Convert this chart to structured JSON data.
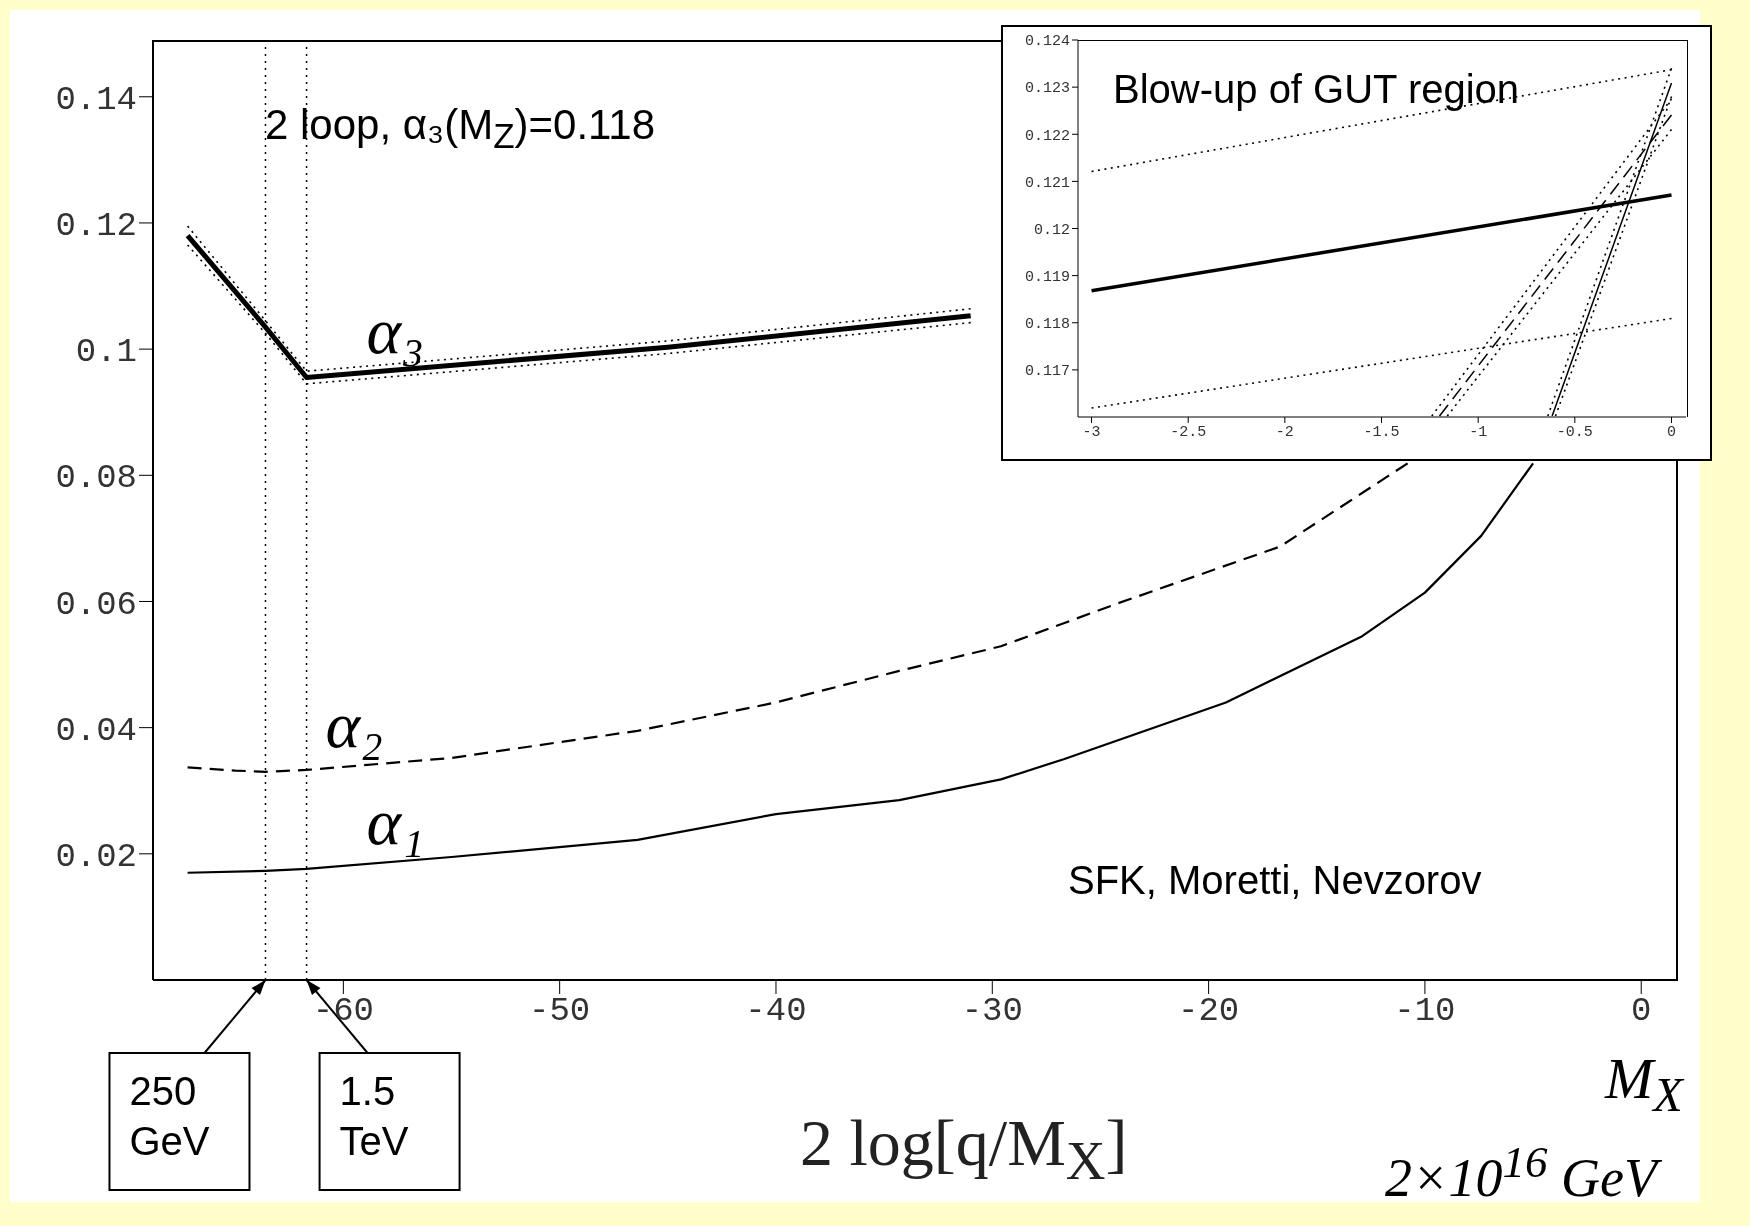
{
  "chart_data": [
    {
      "type": "line",
      "xlabel": "2 log[q/M$_{X}$]",
      "xlim": [
        -68.8,
        1.7
      ],
      "ylim": [
        0,
        0.149
      ],
      "xticks": [
        -60,
        -50,
        -40,
        -30,
        -20,
        -10,
        0
      ],
      "yticks": [
        0.02,
        0.04,
        0.06,
        0.08,
        0.1,
        0.12,
        0.14
      ],
      "grid": false,
      "legend": false,
      "marker": "none",
      "annotations": [
        "2 loop, α₃(M$_{Z}$)=0.118",
        "SFK, Moretti, Nevzorov",
        "M$_{X}$",
        "2×10$^{16}$ GeV",
        {
          "text": "250 GeV",
          "x": -63.6,
          "y": 0
        },
        {
          "text": "1.5 TeV",
          "x": -61.7,
          "y": 0
        }
      ],
      "ref_lines": [
        {
          "axis": "x",
          "value": -63.6,
          "color": "#000000",
          "line_style": "dotted"
        },
        {
          "axis": "x",
          "value": -61.7,
          "color": "#000000",
          "line_style": "dotted"
        }
      ],
      "series": [
        {
          "name": "α₃",
          "color": "#000000",
          "line_style": "solid",
          "x": [
            -67.2,
            -63.6,
            -61.7,
            -45,
            -31
          ],
          "values": [
            0.118,
            0.1035,
            0.0955,
            0.1003,
            0.1053
          ]
        },
        {
          "color": "#000000",
          "line_style": "dotted",
          "x": [
            -67.2,
            -63.6,
            -61.7,
            -45,
            -31
          ],
          "values": [
            0.1195,
            0.1045,
            0.0965,
            0.1013,
            0.1064
          ]
        },
        {
          "color": "#000000",
          "line_style": "dotted",
          "x": [
            -67.2,
            -63.6,
            -61.7,
            -45,
            -31
          ],
          "values": [
            0.1165,
            0.1025,
            0.0945,
            0.0993,
            0.1042
          ]
        },
        {
          "name": "α₂",
          "color": "#000000",
          "line_style": "dashed",
          "x": [
            -67.2,
            -65,
            -63.6,
            -61.7,
            -55,
            -46.4,
            -40,
            -34.3,
            -29.6,
            -24.2,
            -16.7,
            -10.8
          ],
          "values": [
            0.0337,
            0.0332,
            0.033,
            0.0333,
            0.0352,
            0.0395,
            0.044,
            0.049,
            0.0529,
            0.0597,
            0.0687,
            0.0819
          ]
        },
        {
          "name": "α₁",
          "color": "#000000",
          "line_style": "solid",
          "x": [
            -67.2,
            -63.6,
            -61.7,
            -55,
            -46.4,
            -40,
            -34.3,
            -29.6,
            -26.7,
            -19.2,
            -12.9,
            -10,
            -7.4,
            -5
          ],
          "values": [
            0.017,
            0.0173,
            0.0176,
            0.0195,
            0.0222,
            0.0263,
            0.0285,
            0.0318,
            0.035,
            0.044,
            0.0545,
            0.0614,
            0.0704,
            0.0819
          ]
        }
      ]
    },
    {
      "type": "line",
      "title": "Blow-up of GUT region",
      "xlim": [
        -3.07,
        0.075
      ],
      "ylim": [
        0.116,
        0.124
      ],
      "xticks": [
        -3,
        -2.5,
        -2,
        -1.5,
        -1,
        -0.5,
        0
      ],
      "yticks": [
        0.117,
        0.118,
        0.119,
        0.12,
        0.121,
        0.122,
        0.123,
        0.124
      ],
      "grid": false,
      "legend": false,
      "marker": "none",
      "series": [
        {
          "color": "#000000",
          "line_style": "solid",
          "x": [
            -3,
            0
          ],
          "values": [
            0.11868,
            0.12071
          ]
        },
        {
          "color": "#000000",
          "line_style": "dotted",
          "x": [
            -3,
            0
          ],
          "values": [
            0.12121,
            0.12337
          ]
        },
        {
          "color": "#000000",
          "line_style": "dotted",
          "x": [
            -3,
            0
          ],
          "values": [
            0.11619,
            0.11809
          ]
        },
        {
          "color": "#000000",
          "line_style": "dashed",
          "x": [
            -1.2,
            0
          ],
          "values": [
            0.11602,
            0.12241
          ]
        },
        {
          "color": "#000000",
          "line_style": "dotted",
          "x": [
            -1.24,
            0
          ],
          "values": [
            0.11602,
            0.12275
          ]
        },
        {
          "color": "#000000",
          "line_style": "dotted",
          "x": [
            -1.16,
            0
          ],
          "values": [
            0.11602,
            0.1221
          ]
        },
        {
          "color": "#000000",
          "line_style": "solid",
          "x": [
            -0.6175,
            0
          ],
          "values": [
            0.11602,
            0.12309
          ]
        },
        {
          "color": "#000000",
          "line_style": "dotted",
          "x": [
            -0.64,
            0
          ],
          "values": [
            0.11602,
            0.1234
          ]
        },
        {
          "color": "#000000",
          "line_style": "dotted",
          "x": [
            -0.6,
            0
          ],
          "values": [
            0.11602,
            0.1228
          ]
        }
      ]
    }
  ]
}
